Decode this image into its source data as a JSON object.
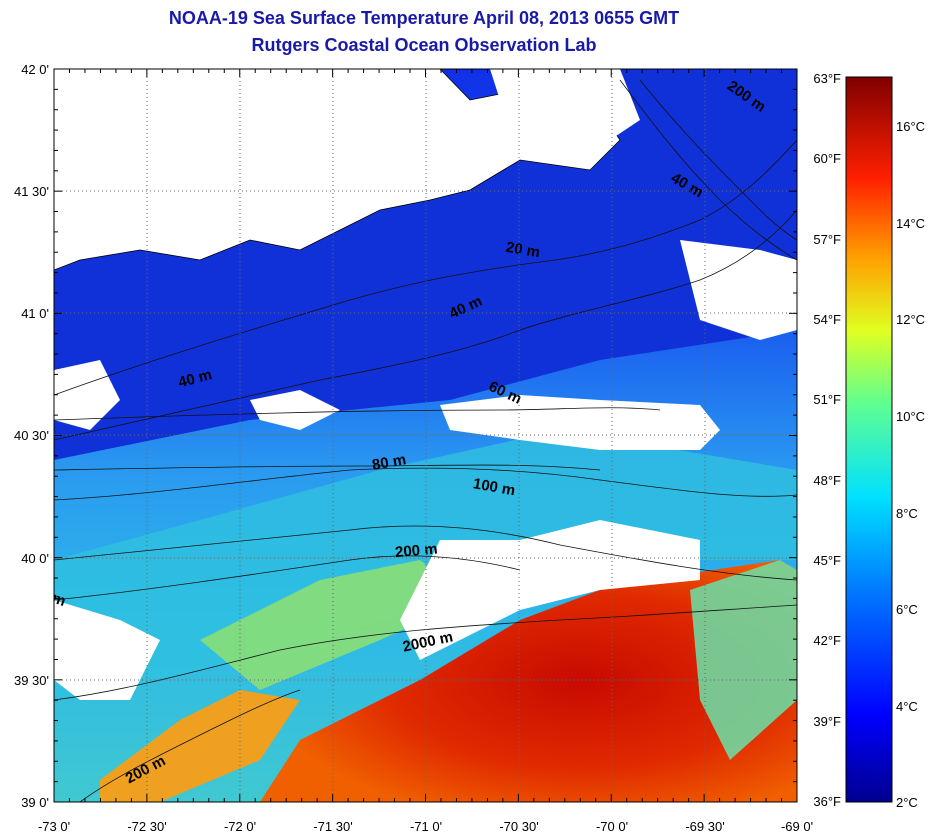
{
  "title": "NOAA-19 Sea Surface Temperature April 08, 2013 0655 GMT",
  "subtitle": "Rutgers Coastal Ocean Observation Lab",
  "latitude_labels": [
    "42 0'",
    "41 30'",
    "41 0'",
    "40 30'",
    "40 0'",
    "39 30'",
    "39 0'"
  ],
  "longitude_labels": [
    "-73 0'",
    "-72 30'",
    "-72 0'",
    "-71 30'",
    "-71 0'",
    "-70 30'",
    "-70 0'",
    "-69 30'",
    "-69 0'"
  ],
  "colorbar": {
    "fahrenheit_labels": [
      "63°F",
      "60°F",
      "57°F",
      "54°F",
      "51°F",
      "48°F",
      "45°F",
      "42°F",
      "39°F",
      "36°F"
    ],
    "celsius_labels": [
      "16°C",
      "14°C",
      "12°C",
      "10°C",
      "8°C",
      "6°C",
      "4°C",
      "2°C"
    ],
    "colors": [
      "#00008f",
      "#0000ff",
      "#0080ff",
      "#00ffff",
      "#80ff80",
      "#ffff00",
      "#ff8000",
      "#ff0000",
      "#800000"
    ]
  },
  "contour_labels": [
    "200 m",
    "40 m",
    "20 m",
    "40 m",
    "40 m",
    "60 m",
    "80 m",
    "100 m",
    "200 m",
    "2000 m",
    "200 m",
    "m"
  ],
  "colors": {
    "title": "#1a1aa8",
    "land_cloud": "#ffffff",
    "cold_water": "#1040e0",
    "warm_water": "#d02000"
  }
}
